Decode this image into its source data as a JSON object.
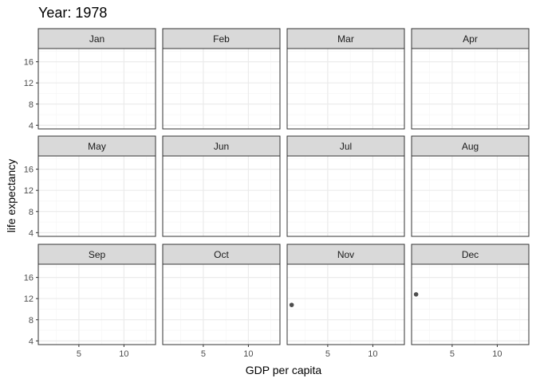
{
  "chart_data": {
    "type": "scatter",
    "title": "Year: 1978",
    "xlabel": "GDP per capita",
    "ylabel": "life expectancy",
    "xlim": [
      0.5,
      13.5
    ],
    "ylim": [
      3.3,
      18.5
    ],
    "x_major_ticks": [
      5,
      10
    ],
    "y_major_ticks": [
      4,
      8,
      12,
      16
    ],
    "grid": true,
    "facet_layout": {
      "rows": 3,
      "cols": 4
    },
    "facets": [
      {
        "label": "Jan",
        "points": []
      },
      {
        "label": "Feb",
        "points": []
      },
      {
        "label": "Mar",
        "points": []
      },
      {
        "label": "Apr",
        "points": []
      },
      {
        "label": "May",
        "points": []
      },
      {
        "label": "Jun",
        "points": []
      },
      {
        "label": "Jul",
        "points": []
      },
      {
        "label": "Aug",
        "points": []
      },
      {
        "label": "Sep",
        "points": []
      },
      {
        "label": "Oct",
        "points": []
      },
      {
        "label": "Nov",
        "points": [
          {
            "x": 1.0,
            "y": 10.8
          }
        ]
      },
      {
        "label": "Dec",
        "points": [
          {
            "x": 1.0,
            "y": 12.8
          }
        ]
      }
    ]
  },
  "colors": {
    "point": "#4d4d4d",
    "strip_fill": "#d9d9d9",
    "panel_border": "#333333",
    "grid_major": "#ebebeb",
    "grid_minor": "#f5f5f5"
  }
}
